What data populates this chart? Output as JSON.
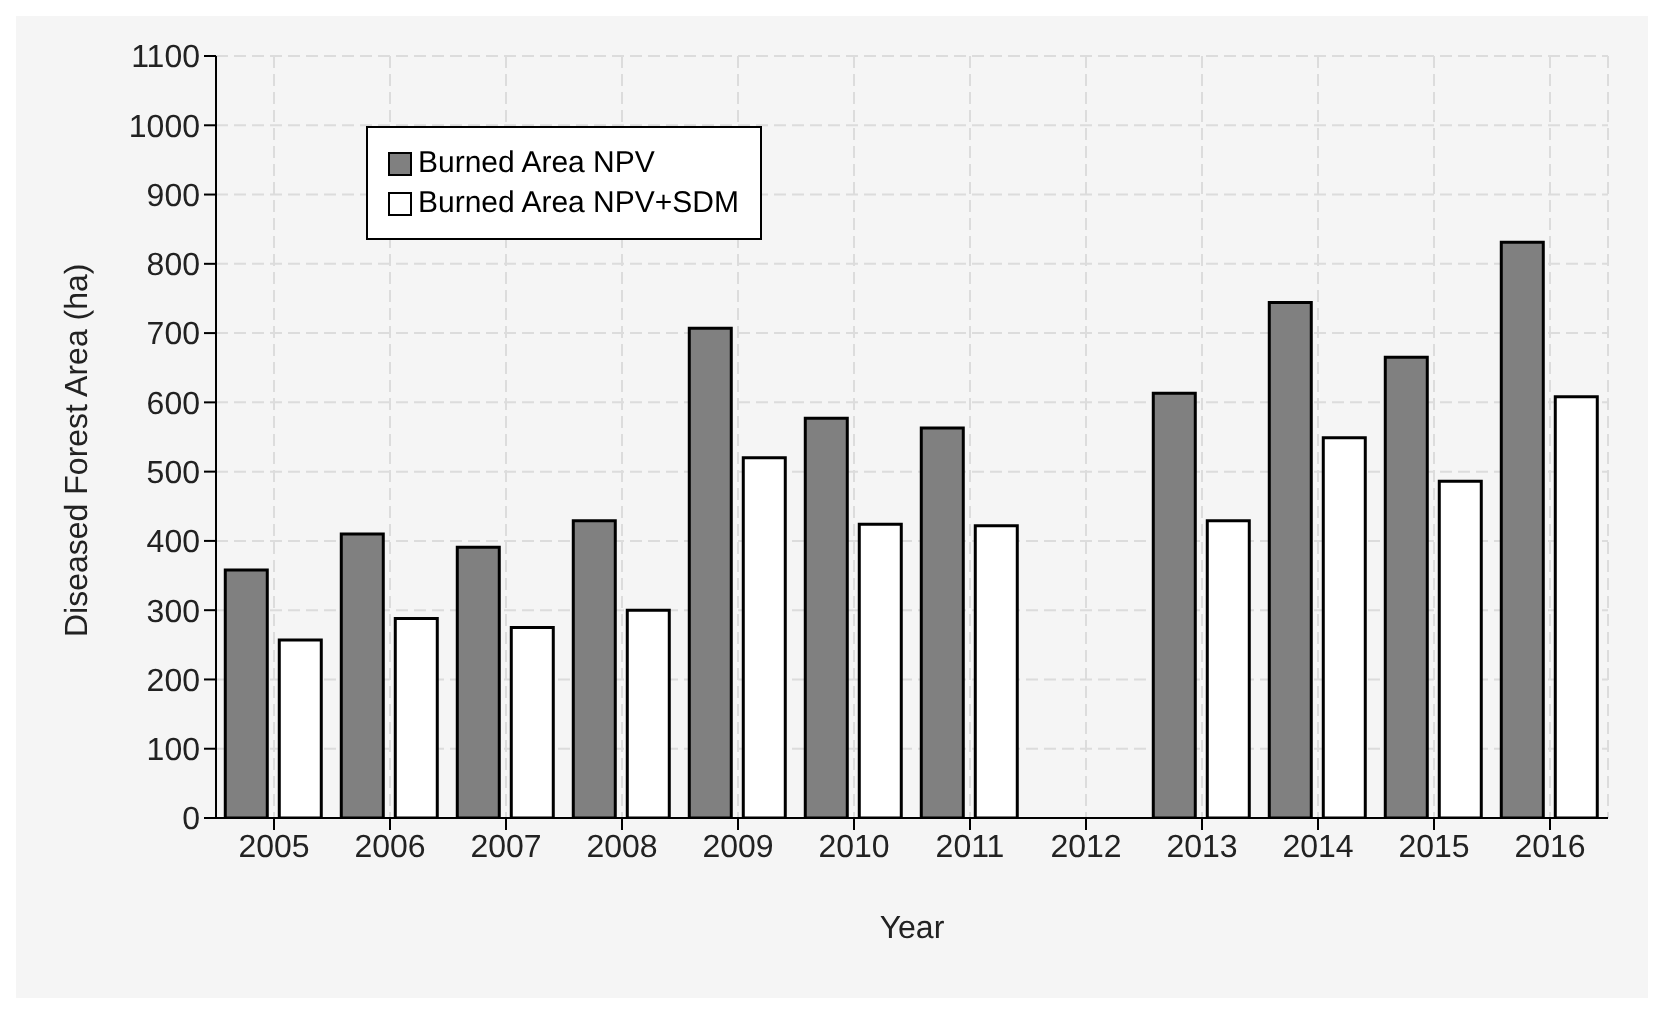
{
  "chart_data": {
    "type": "bar",
    "xlabel": "Year",
    "ylabel": "Diseased Forest Area (ha)",
    "categories": [
      "2005",
      "2006",
      "2007",
      "2008",
      "2009",
      "2010",
      "2011",
      "2012",
      "2013",
      "2014",
      "2015",
      "2016"
    ],
    "series": [
      {
        "name": "Burned Area NPV",
        "color": "#808080",
        "values": [
          358,
          410,
          391,
          429,
          707,
          577,
          563,
          null,
          613,
          744,
          665,
          831
        ]
      },
      {
        "name": "Burned Area NPV+SDM",
        "color": "#ffffff",
        "values": [
          257,
          288,
          275,
          300,
          520,
          424,
          422,
          null,
          429,
          549,
          486,
          608
        ]
      }
    ],
    "ylim": [
      0,
      1100
    ],
    "yticks": [
      0,
      100,
      200,
      300,
      400,
      500,
      600,
      700,
      800,
      900,
      1000,
      1100
    ],
    "grid": true,
    "legend": "top left"
  }
}
